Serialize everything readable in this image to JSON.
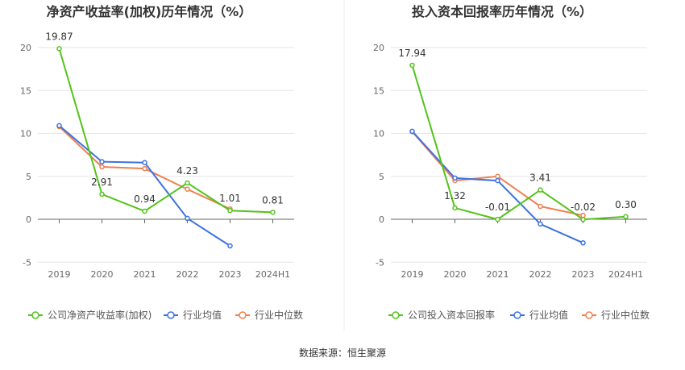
{
  "source": "数据来源：恒生聚源",
  "colors": {
    "company": "#52c41a",
    "avg": "#3c72e0",
    "median": "#f08050"
  },
  "chart_data": [
    {
      "type": "line",
      "title": "净资产收益率(加权)历年情况（%）",
      "categories": [
        "2019",
        "2020",
        "2021",
        "2022",
        "2023",
        "2024H1"
      ],
      "ylim": [
        -5,
        20
      ],
      "yticks": [
        -5,
        0,
        5,
        10,
        15,
        20
      ],
      "grid": true,
      "legend": "bottom",
      "series": [
        {
          "name": "公司净资产收益率(加权)",
          "values": [
            19.87,
            2.91,
            0.94,
            4.23,
            1.01,
            0.81
          ],
          "labels": [
            "19.87",
            "2.91",
            "0.94",
            "4.23",
            "1.01",
            "0.81"
          ]
        },
        {
          "name": "行业均值",
          "values": [
            10.9,
            6.7,
            6.6,
            0.1,
            -3.1,
            null
          ]
        },
        {
          "name": "行业中位数",
          "values": [
            10.8,
            6.1,
            5.9,
            3.5,
            1.2,
            null
          ]
        }
      ]
    },
    {
      "type": "line",
      "title": "投入资本回报率历年情况（%）",
      "categories": [
        "2019",
        "2020",
        "2021",
        "2022",
        "2023",
        "2024H1"
      ],
      "ylim": [
        -5,
        20
      ],
      "yticks": [
        -5,
        0,
        5,
        10,
        15,
        20
      ],
      "grid": true,
      "legend": "bottom",
      "series": [
        {
          "name": "公司投入资本回报率",
          "values": [
            17.94,
            1.32,
            -0.01,
            3.41,
            -0.02,
            0.3
          ],
          "labels": [
            "17.94",
            "1.32",
            "-0.01",
            "3.41",
            "-0.02",
            "0.30"
          ]
        },
        {
          "name": "行业均值",
          "values": [
            10.25,
            4.8,
            4.5,
            -0.55,
            -2.75,
            null
          ]
        },
        {
          "name": "行业中位数",
          "values": [
            10.2,
            4.5,
            5.0,
            1.5,
            0.45,
            null
          ]
        }
      ]
    }
  ]
}
